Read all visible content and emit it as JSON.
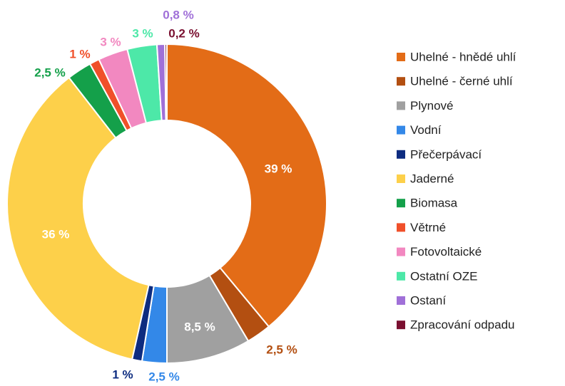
{
  "chart_data": {
    "type": "donut",
    "categories": [
      "Uhelné - hnědé uhlí",
      "Uhelné - černé uhlí",
      "Plynové",
      "Vodní",
      "Přečerpávací",
      "Jaderné",
      "Biomasa",
      "Větrné",
      "Fotovoltaické",
      "Ostatní OZE",
      "Ostaní",
      "Zpracování odpadu"
    ],
    "values": [
      39,
      2.5,
      8.5,
      2.5,
      1,
      36,
      2.5,
      1,
      3,
      3,
      0.8,
      0.2
    ],
    "value_labels": [
      "39 %",
      "2,5 %",
      "8,5 %",
      "2,5 %",
      "1 %",
      "36 %",
      "2,5 %",
      "1 %",
      "3 %",
      "3 %",
      "0,8 %",
      "0,2 %"
    ],
    "colors": [
      "#e36c17",
      "#b34f11",
      "#a0a0a0",
      "#3388e8",
      "#0d2c80",
      "#fdd04a",
      "#14a04a",
      "#f0502a",
      "#f288c0",
      "#4de8a8",
      "#a070d8",
      "#7a1030"
    ],
    "legend": "right"
  }
}
